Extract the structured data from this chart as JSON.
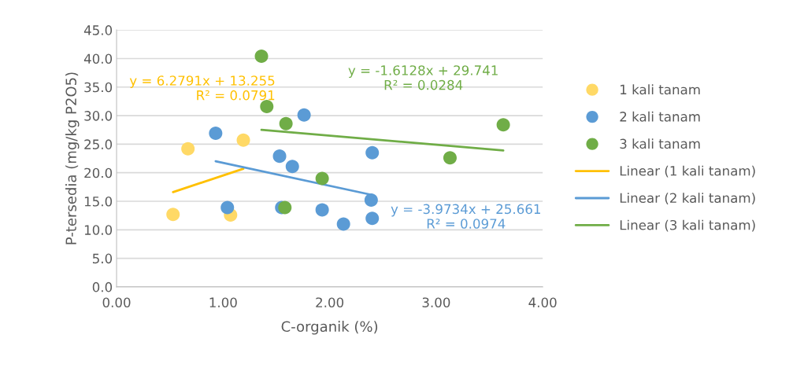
{
  "chart_data": {
    "type": "scatter",
    "xlabel": "C-organik (%)",
    "ylabel": "P-tersedia (mg/kg P2O5)",
    "xlim": [
      0,
      4
    ],
    "xticks": [
      {
        "value": 0,
        "label": "0.00"
      },
      {
        "value": 1,
        "label": "1.00"
      },
      {
        "value": 2,
        "label": "2.00"
      },
      {
        "value": 3,
        "label": "3.00"
      },
      {
        "value": 4,
        "label": "4.00"
      }
    ],
    "ylim": [
      0,
      45
    ],
    "yticks": [
      {
        "value": 0,
        "label": "0.0"
      },
      {
        "value": 5,
        "label": "5.0"
      },
      {
        "value": 10,
        "label": "10.0"
      },
      {
        "value": 15,
        "label": "15.0"
      },
      {
        "value": 20,
        "label": "20.0"
      },
      {
        "value": 25,
        "label": "25.0"
      },
      {
        "value": 30,
        "label": "30.0"
      },
      {
        "value": 35,
        "label": "35.0"
      },
      {
        "value": 40,
        "label": "40.0"
      },
      {
        "value": 45,
        "label": "45.0"
      }
    ],
    "grid": "y",
    "legend": "right",
    "line_style": "solid",
    "series": [
      {
        "name": "1 kali tanam",
        "marker": "circle",
        "color": "#ffd966",
        "x": [
          0.53,
          0.67,
          1.07,
          1.19
        ],
        "values": [
          12.7,
          24.2,
          12.6,
          25.7
        ]
      },
      {
        "name": "2 kali tanam",
        "marker": "circle",
        "color": "#5b9bd5",
        "x": [
          0.93,
          1.04,
          1.53,
          1.65,
          1.76,
          1.55,
          1.93,
          2.13,
          2.4,
          2.39,
          2.4
        ],
        "values": [
          26.9,
          13.9,
          22.9,
          21.1,
          30.1,
          13.9,
          13.5,
          11.0,
          23.5,
          15.2,
          12.0
        ]
      },
      {
        "name": "3 kali tanam",
        "marker": "circle",
        "color": "#70ad47",
        "x": [
          1.36,
          1.41,
          1.59,
          1.58,
          1.93,
          3.13,
          3.63
        ],
        "values": [
          40.4,
          31.6,
          28.6,
          13.9,
          19.0,
          22.6,
          28.4
        ]
      },
      {
        "name": "Linear (1 kali tanam)",
        "type": "line",
        "color": "#ffc000",
        "x": [
          0.53,
          1.19
        ],
        "values": [
          16.6,
          20.7
        ]
      },
      {
        "name": "Linear (2 kali tanam)",
        "type": "line",
        "color": "#5b9bd5",
        "x": [
          0.93,
          2.4
        ],
        "values": [
          22.0,
          16.1
        ]
      },
      {
        "name": "Linear (3 kali tanam)",
        "type": "line",
        "color": "#70ad47",
        "x": [
          1.36,
          3.63
        ],
        "values": [
          27.5,
          23.9
        ]
      }
    ],
    "annotations": [
      "y = 6.2791x + 13.255\nR² = 0.0791",
      "y = -3.9734x + 25.661\nR² = 0.0974",
      "y = -1.6128x + 29.741\nR² = 0.0284"
    ]
  }
}
